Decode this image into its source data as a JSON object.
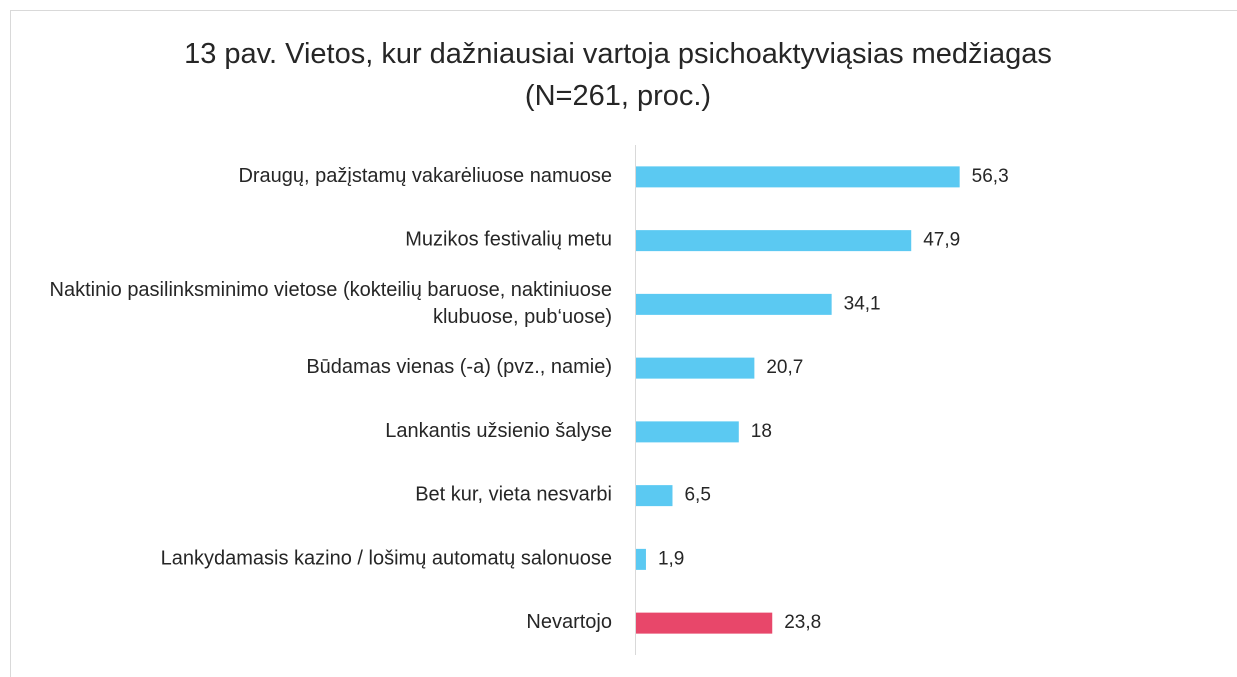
{
  "chart_data": {
    "type": "hbar",
    "title": "13 pav. Vietos, kur dažniausiai vartoja psichoaktyviąsias medžiagas (N=261, proc.)",
    "categories": [
      "Draugų, pažįstamų vakarėliuose namuose",
      "Muzikos festivalių metu",
      "Naktinio pasilinksminimo vietose (kokteilių baruose, naktiniuose klubuose, pub‘uose)",
      "Būdamas vienas (-a) (pvz., namie)",
      "Lankantis užsienio šalyse",
      "Bet kur, vieta nesvarbi",
      "Lankydamasis kazino / lošimų automatų salonuose",
      "Nevartojo"
    ],
    "values": [
      56.3,
      47.9,
      34.1,
      20.7,
      18,
      6.5,
      1.9,
      23.8
    ],
    "value_labels": [
      "56,3",
      "47,9",
      "34,1",
      "20,7",
      "18",
      "6,5",
      "1,9",
      "23,8"
    ],
    "colors": [
      "#5bc9f2",
      "#5bc9f2",
      "#5bc9f2",
      "#5bc9f2",
      "#5bc9f2",
      "#5bc9f2",
      "#5bc9f2",
      "#e8476a"
    ],
    "xlim": [
      0,
      60
    ]
  }
}
